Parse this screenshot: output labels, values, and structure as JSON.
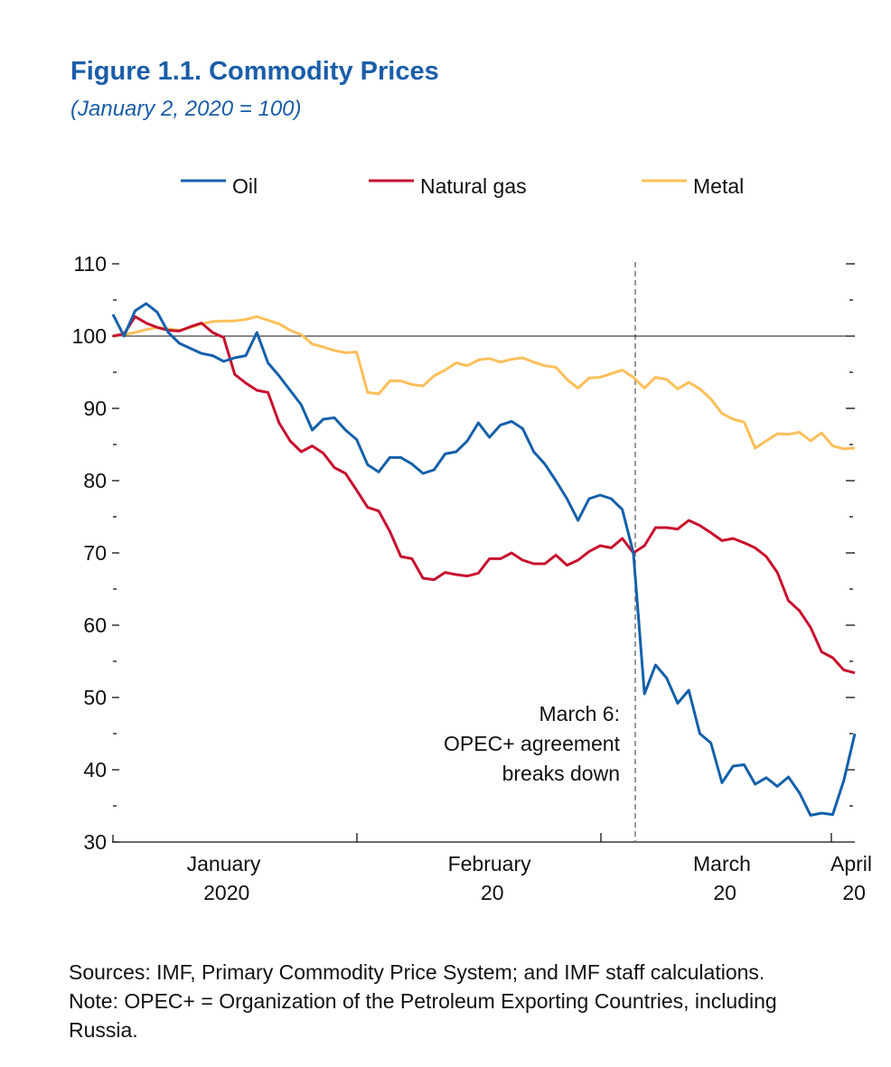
{
  "chart_data": {
    "type": "line",
    "title": "Figure 1.1. Commodity Prices",
    "subtitle": "(January 2, 2020 = 100)",
    "categories": [
      null,
      null,
      null,
      null,
      null,
      null,
      null,
      null,
      null,
      null,
      "January 2020",
      null,
      null,
      null,
      null,
      null,
      null,
      null,
      null,
      null,
      null,
      null,
      null,
      null,
      null,
      null,
      null,
      null,
      null,
      null,
      null,
      null,
      null,
      null,
      "February 20",
      null,
      null,
      null,
      null,
      null,
      null,
      null,
      null,
      null,
      null,
      null,
      null,
      null,
      null,
      null,
      null,
      null,
      null,
      null,
      null,
      "March 20",
      null,
      null,
      null,
      null,
      null,
      null,
      null,
      null,
      null,
      null,
      null,
      "April 20"
    ],
    "series": [
      {
        "name": "Oil",
        "color": "#1460aa",
        "values": [
          103,
          100,
          103.5,
          104.5,
          103.3,
          100.5,
          99,
          98.3,
          97.6,
          97.3,
          96.5,
          97,
          97.3,
          100.5,
          96.3,
          94.5,
          92.5,
          90.5,
          87,
          88.5,
          88.7,
          87,
          85.7,
          82.2,
          81.2,
          83.2,
          83.2,
          82.3,
          81,
          81.5,
          83.7,
          84,
          85.5,
          88,
          86,
          87.7,
          88.2,
          87.2,
          84,
          82.3,
          80,
          77.5,
          74.5,
          77.5,
          78,
          77.5,
          76,
          70,
          50.5,
          54.5,
          52.7,
          49.2,
          51,
          45,
          43.7,
          38.2,
          40.5,
          40.7,
          38,
          38.9,
          37.7,
          39,
          36.8,
          33.7,
          34,
          33.8,
          38.5,
          45
        ]
      },
      {
        "name": "Natural gas",
        "color": "#c8102e",
        "values": [
          100,
          100.3,
          102.7,
          101.8,
          101.2,
          100.8,
          100.7,
          101.3,
          101.8,
          100.5,
          99.8,
          94.7,
          93.5,
          92.5,
          92.2,
          88,
          85.5,
          84,
          84.8,
          83.8,
          81.8,
          81,
          78.7,
          76.3,
          75.8,
          73,
          69.5,
          69.2,
          66.5,
          66.3,
          67.3,
          67,
          66.8,
          67.2,
          69.2,
          69.2,
          70,
          69,
          68.5,
          68.5,
          69.7,
          68.3,
          69,
          70.2,
          71,
          70.7,
          72,
          70,
          71,
          73.5,
          73.5,
          73.3,
          74.5,
          73.8,
          72.8,
          71.7,
          72,
          71.4,
          70.7,
          69.5,
          67.3,
          63.4,
          62,
          59.7,
          56.3,
          55.5,
          53.8,
          53.4
        ]
      },
      {
        "name": "Metal",
        "color": "#fdbf5a",
        "values": [
          100,
          100.2,
          100.5,
          100.9,
          101.2,
          101,
          100.8,
          101.2,
          101.7,
          102,
          102.1,
          102.1,
          102.3,
          102.7,
          102.2,
          101.7,
          100.8,
          100.2,
          98.9,
          98.5,
          98,
          97.7,
          97.8,
          92.2,
          92,
          93.8,
          93.8,
          93.3,
          93.1,
          94.5,
          95.3,
          96.3,
          95.9,
          96.7,
          96.9,
          96.4,
          96.8,
          97,
          96.4,
          95.9,
          95.7,
          94,
          92.8,
          94.2,
          94.3,
          94.8,
          95.3,
          94.3,
          92.8,
          94.3,
          94,
          92.7,
          93.6,
          92.7,
          91.3,
          89.3,
          88.5,
          88.1,
          84.5,
          85.5,
          86.5,
          86.4,
          86.7,
          85.5,
          86.6,
          84.8,
          84.4,
          84.5
        ]
      }
    ],
    "ylim": [
      30,
      110
    ],
    "yticks": [
      30,
      40,
      50,
      60,
      70,
      80,
      90,
      100,
      110
    ],
    "yticks_minor": [
      35,
      45,
      55,
      65,
      75,
      85,
      95,
      105
    ],
    "reference_line": 100,
    "annotation": [
      "March 6:",
      "OPEC+ agreement",
      "breaks down"
    ],
    "legend": "top",
    "notes": [
      "Sources: IMF, Primary Commodity Price System; and IMF staff calculations.",
      "Note: OPEC+ = Organization of the Petroleum Exporting Countries, including",
      "Russia."
    ]
  }
}
